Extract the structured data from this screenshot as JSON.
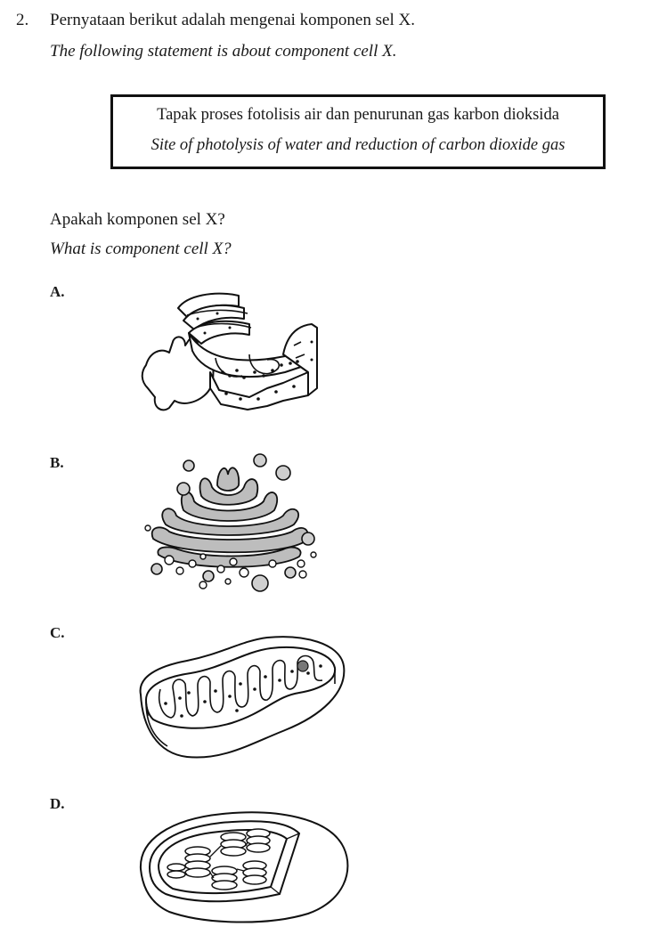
{
  "question": {
    "number": "2.",
    "intro_ms": "Pernyataan berikut adalah mengenai komponen sel X.",
    "intro_en": "The following statement is about component cell X.",
    "statement_ms": "Tapak proses fotolisis air dan penurunan gas karbon dioksida",
    "statement_en": "Site of photolysis of water and reduction of carbon dioxide gas",
    "prompt_ms": "Apakah komponen sel X?",
    "prompt_en": "What is component cell X?"
  },
  "options": [
    {
      "label": "A.",
      "diagram": "rough-endoplasmic-reticulum"
    },
    {
      "label": "B.",
      "diagram": "golgi-apparatus"
    },
    {
      "label": "C.",
      "diagram": "mitochondrion"
    },
    {
      "label": "D.",
      "diagram": "chloroplast"
    }
  ]
}
